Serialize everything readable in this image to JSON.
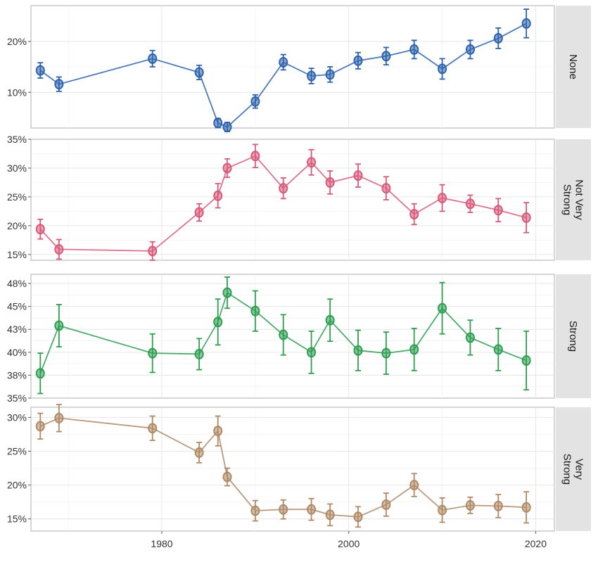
{
  "chart_data": {
    "type": "line",
    "layout": "faceted-vertical",
    "x_ticks": [
      1980,
      2000,
      2020
    ],
    "xlim": [
      1966,
      2022
    ],
    "error_bars": true,
    "grid": true,
    "x": [
      1967,
      1969,
      1979,
      1984,
      1986,
      1987,
      1990,
      1993,
      1996,
      1998,
      2001,
      2004,
      2007,
      2010,
      2013,
      2016,
      2019
    ],
    "panels": [
      {
        "name": "None",
        "label_lines": [
          "None"
        ],
        "color": "#2d63ad",
        "ylim": [
          3,
          27
        ],
        "y_ticks": [
          10,
          20
        ],
        "y_tick_labels": [
          "10%",
          "20%"
        ],
        "values": [
          14.3,
          11.6,
          16.6,
          13.9,
          4.0,
          3.2,
          8.2,
          15.9,
          13.2,
          13.5,
          16.2,
          17.1,
          18.4,
          14.6,
          18.4,
          20.6,
          23.5
        ],
        "errors": [
          1.5,
          1.4,
          1.6,
          1.4,
          0.9,
          0.9,
          1.3,
          1.5,
          1.5,
          1.5,
          1.6,
          1.7,
          1.8,
          2.0,
          1.8,
          2.0,
          2.8
        ]
      },
      {
        "name": "Not Very Strong",
        "label_lines": [
          "Not Very",
          "Strong"
        ],
        "color": "#d85a7a",
        "ylim": [
          14,
          35
        ],
        "y_ticks": [
          15,
          20,
          25,
          30,
          35
        ],
        "y_tick_labels": [
          "15%",
          "20%",
          "25%",
          "30%",
          "35%"
        ],
        "values": [
          19.4,
          15.9,
          15.6,
          22.3,
          25.2,
          30.0,
          32.1,
          26.5,
          31.0,
          27.5,
          28.7,
          26.5,
          22.0,
          24.8,
          23.8,
          22.7,
          21.4
        ],
        "errors": [
          1.7,
          1.7,
          1.6,
          1.5,
          2.1,
          1.6,
          2.0,
          1.8,
          2.2,
          2.0,
          2.0,
          2.0,
          1.8,
          2.3,
          1.5,
          2.0,
          2.6
        ]
      },
      {
        "name": "Strong",
        "label_lines": [
          "Strong"
        ],
        "color": "#2e9e50",
        "ylim": [
          35,
          48.5
        ],
        "y_ticks": [
          35,
          37.5,
          40,
          42.5,
          45,
          47.5
        ],
        "y_tick_labels": [
          "35%",
          "38%",
          "40%",
          "43%",
          "45%",
          "48%"
        ],
        "values": [
          37.7,
          42.9,
          39.9,
          39.8,
          43.3,
          46.5,
          44.5,
          41.9,
          40.0,
          43.5,
          40.2,
          39.9,
          40.3,
          44.8,
          41.6,
          40.3,
          39.1
        ],
        "errors": [
          2.2,
          2.3,
          2.1,
          1.7,
          2.5,
          1.7,
          2.2,
          2.2,
          2.3,
          2.3,
          2.2,
          2.3,
          2.3,
          2.8,
          1.9,
          2.3,
          3.2
        ]
      },
      {
        "name": "Very Strong",
        "label_lines": [
          "Very",
          "Strong"
        ],
        "color": "#b08a66",
        "ylim": [
          13.2,
          31.5
        ],
        "y_ticks": [
          15,
          20,
          25,
          30
        ],
        "y_tick_labels": [
          "15%",
          "20%",
          "25%",
          "30%"
        ],
        "values": [
          28.7,
          29.9,
          28.4,
          24.8,
          28.0,
          21.2,
          16.2,
          16.4,
          16.4,
          15.6,
          15.3,
          17.1,
          20.0,
          16.3,
          17.0,
          16.9,
          16.7
        ],
        "errors": [
          1.9,
          2.0,
          1.8,
          1.5,
          2.2,
          1.3,
          1.5,
          1.4,
          1.6,
          1.6,
          1.5,
          1.7,
          1.7,
          1.8,
          1.2,
          1.7,
          2.3
        ]
      }
    ]
  }
}
